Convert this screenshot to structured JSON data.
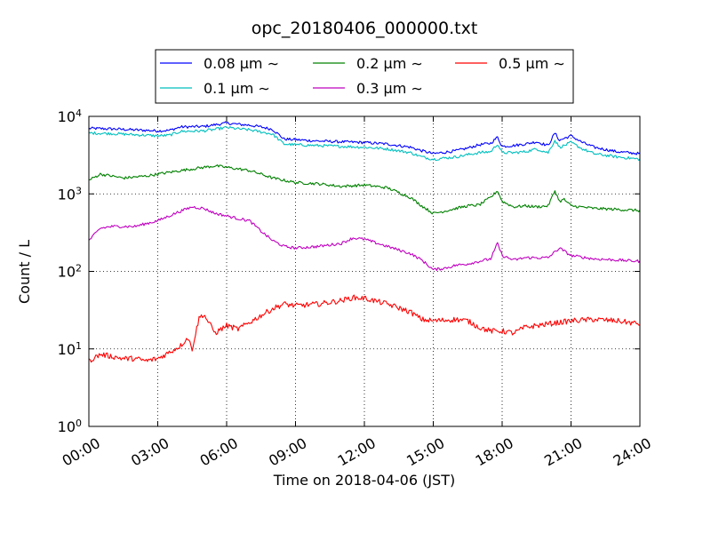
{
  "chart_data": {
    "type": "line",
    "title": "opc_20180406_000000.txt",
    "xlabel": "Time on 2018-04-06 (JST)",
    "ylabel": "Count / L",
    "y_scale": "log",
    "ylim": [
      1,
      10000
    ],
    "xlim_hours": [
      0,
      24
    ],
    "x_ticks": [
      "00:00",
      "03:00",
      "06:00",
      "09:00",
      "12:00",
      "15:00",
      "18:00",
      "21:00",
      "24:00"
    ],
    "y_ticks": [
      {
        "base": "10",
        "exp": "0"
      },
      {
        "base": "10",
        "exp": "1"
      },
      {
        "base": "10",
        "exp": "2"
      },
      {
        "base": "10",
        "exp": "3"
      },
      {
        "base": "10",
        "exp": "4"
      }
    ],
    "grid": true,
    "legend_position": "top-center",
    "series": [
      {
        "name": "0.08 μm ∼",
        "color": "#0000ff",
        "x": [
          0,
          1,
          2,
          3,
          3.5,
          4,
          5,
          5.5,
          6,
          6.5,
          7,
          7.5,
          8,
          8.5,
          9,
          10,
          11,
          12,
          13,
          14,
          14.5,
          15,
          16,
          16.5,
          17,
          17.5,
          17.8,
          18,
          18.5,
          19,
          19.5,
          20,
          20.3,
          20.5,
          20.7,
          21,
          21.5,
          22,
          23,
          24
        ],
        "values": [
          7000,
          6900,
          6700,
          6500,
          6600,
          7300,
          7400,
          7800,
          8200,
          7900,
          7700,
          7300,
          6800,
          5100,
          5000,
          4800,
          4700,
          4600,
          4400,
          4000,
          3600,
          3300,
          3600,
          3900,
          4300,
          4500,
          5400,
          4100,
          4200,
          4400,
          4700,
          4200,
          6100,
          4900,
          5200,
          5600,
          4600,
          4000,
          3500,
          3300
        ]
      },
      {
        "name": "0.1 μm ∼",
        "color": "#00bfbf",
        "x": [
          0,
          1,
          2,
          3,
          3.5,
          4,
          5,
          5.5,
          6,
          6.5,
          7,
          7.5,
          8,
          8.5,
          9,
          10,
          11,
          12,
          13,
          14,
          14.5,
          15,
          16,
          16.5,
          17,
          17.5,
          17.8,
          18,
          18.5,
          19,
          19.5,
          20,
          20.3,
          20.5,
          20.7,
          21,
          21.5,
          22,
          23,
          24
        ],
        "values": [
          6100,
          6000,
          5800,
          5600,
          5700,
          6400,
          6500,
          6800,
          7200,
          6900,
          6700,
          6300,
          5900,
          4400,
          4300,
          4200,
          4100,
          4000,
          3800,
          3400,
          3000,
          2800,
          3000,
          3200,
          3400,
          3500,
          4400,
          3400,
          3400,
          3500,
          3800,
          3400,
          4900,
          4000,
          4200,
          4600,
          3800,
          3300,
          3000,
          2800
        ]
      },
      {
        "name": "0.2 μm ∼",
        "color": "#008000",
        "x": [
          0,
          0.5,
          1,
          1.5,
          2,
          2.5,
          3,
          4,
          5,
          5.5,
          6,
          7,
          7.5,
          8,
          9,
          10,
          11,
          12,
          13,
          14,
          14.5,
          15,
          15.5,
          16,
          16.5,
          17,
          17.5,
          17.8,
          18,
          18.5,
          19,
          19.5,
          20,
          20.3,
          20.5,
          20.7,
          21,
          22,
          23,
          24
        ],
        "values": [
          1500,
          1800,
          1700,
          1600,
          1650,
          1700,
          1800,
          2000,
          2200,
          2300,
          2200,
          2000,
          1800,
          1600,
          1400,
          1350,
          1250,
          1300,
          1200,
          900,
          700,
          560,
          600,
          650,
          700,
          720,
          900,
          1100,
          800,
          680,
          700,
          680,
          700,
          1100,
          800,
          850,
          700,
          650,
          630,
          610
        ]
      },
      {
        "name": "0.3 μm ∼",
        "color": "#bf00bf",
        "x": [
          0,
          0.5,
          1,
          2,
          3,
          3.5,
          4,
          4.5,
          5,
          5.5,
          6,
          6.5,
          7,
          7.5,
          8,
          8.5,
          9,
          10,
          11,
          11.5,
          12,
          13,
          14,
          14.5,
          15,
          15.5,
          16,
          16.5,
          17,
          17.5,
          17.8,
          18,
          18.5,
          19,
          19.5,
          20,
          20.5,
          21,
          22,
          23,
          24
        ],
        "values": [
          250,
          360,
          380,
          380,
          450,
          520,
          600,
          680,
          650,
          560,
          520,
          480,
          450,
          330,
          250,
          210,
          200,
          210,
          230,
          270,
          260,
          210,
          170,
          140,
          105,
          110,
          120,
          125,
          135,
          145,
          230,
          160,
          140,
          150,
          150,
          150,
          200,
          160,
          145,
          140,
          135
        ]
      },
      {
        "name": "0.5 μm ∼",
        "color": "#ff0000",
        "x": [
          0,
          0.5,
          1,
          1.5,
          2,
          2.5,
          3,
          3.5,
          4,
          4.3,
          4.5,
          4.8,
          5,
          5.5,
          6,
          6.5,
          7,
          7.5,
          8,
          8.5,
          9,
          10,
          11,
          11.5,
          12,
          13,
          14,
          14.5,
          15,
          16,
          16.5,
          17,
          17.5,
          18,
          18.5,
          19,
          20,
          21,
          22,
          23,
          24
        ],
        "values": [
          7,
          8.5,
          8,
          7.5,
          7.5,
          7,
          7.5,
          9,
          11,
          14,
          10,
          25,
          28,
          16,
          20,
          18,
          22,
          27,
          33,
          38,
          36,
          38,
          42,
          46,
          45,
          38,
          30,
          24,
          23,
          24,
          23,
          19,
          17,
          17,
          16,
          19,
          21,
          23,
          24,
          23,
          21
        ]
      }
    ]
  }
}
